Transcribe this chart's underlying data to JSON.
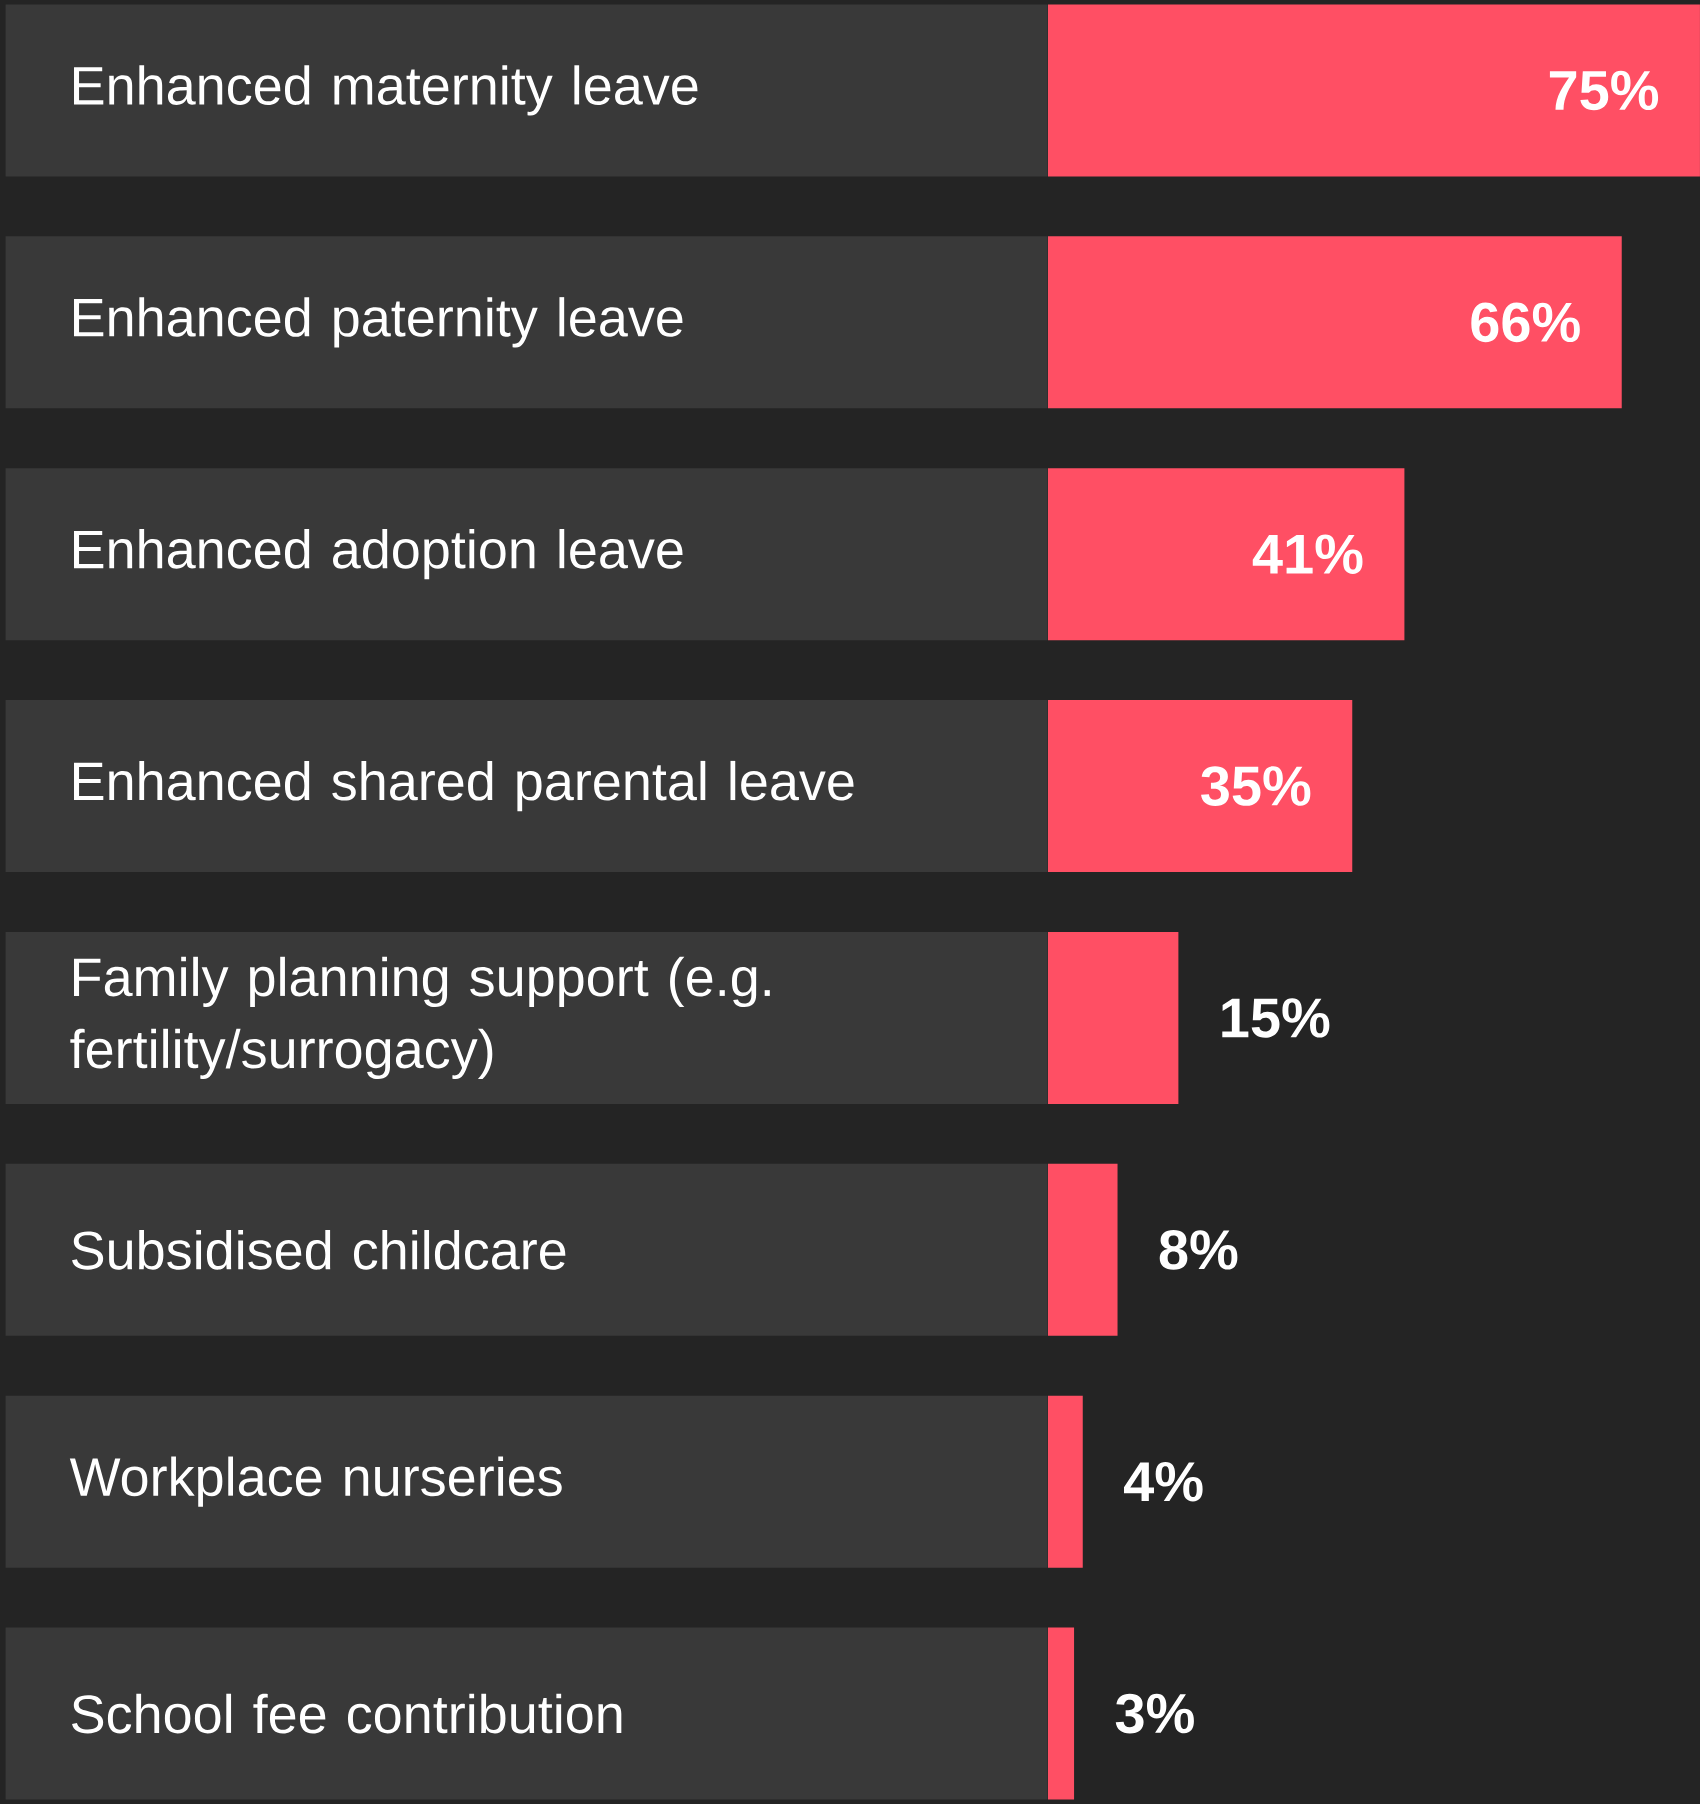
{
  "chart_data": {
    "type": "bar",
    "orientation": "horizontal",
    "categories": [
      "Enhanced maternity leave",
      "Enhanced paternity leave",
      "Enhanced adoption leave",
      "Enhanced shared parental leave",
      "Family planning support (e.g. fertility/surrogacy)",
      "Subsidised childcare",
      "Workplace nurseries",
      "School fee contribution"
    ],
    "values": [
      75,
      66,
      41,
      35,
      15,
      8,
      4,
      3
    ],
    "value_labels": [
      "75%",
      "66%",
      "41%",
      "35%",
      "15%",
      "8%",
      "4%",
      "3%"
    ],
    "color": "#ff4f64",
    "xlim": [
      0,
      75
    ]
  }
}
